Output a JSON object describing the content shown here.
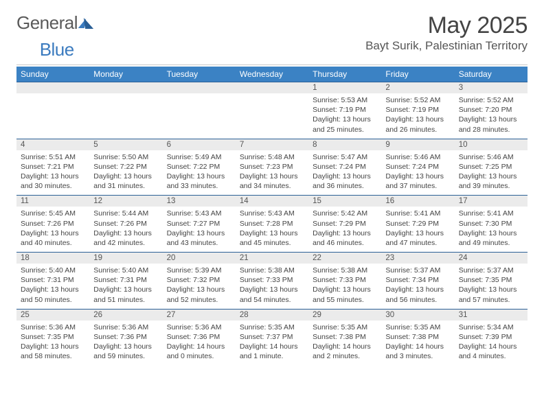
{
  "brand": {
    "part1": "General",
    "part2": "Blue"
  },
  "title": {
    "month": "May 2025",
    "location": "Bayt Surik, Palestinian Territory"
  },
  "weekdays": [
    "Sunday",
    "Monday",
    "Tuesday",
    "Wednesday",
    "Thursday",
    "Friday",
    "Saturday"
  ],
  "colors": {
    "header_bg": "#3b82c4",
    "header_text": "#ffffff",
    "daynum_bg": "#ebebeb",
    "row_border": "#2a5f96",
    "body_text": "#444444",
    "logo_gray": "#5a5a5a",
    "logo_blue": "#3b7bbf"
  },
  "fonts": {
    "body_pt": 10.5,
    "weekday_pt": 12,
    "month_pt": 34,
    "location_pt": 17
  },
  "weeks": [
    [
      null,
      null,
      null,
      null,
      {
        "n": "1",
        "sr": "5:53 AM",
        "ss": "7:19 PM",
        "dl": "13 hours and 25 minutes."
      },
      {
        "n": "2",
        "sr": "5:52 AM",
        "ss": "7:19 PM",
        "dl": "13 hours and 26 minutes."
      },
      {
        "n": "3",
        "sr": "5:52 AM",
        "ss": "7:20 PM",
        "dl": "13 hours and 28 minutes."
      }
    ],
    [
      {
        "n": "4",
        "sr": "5:51 AM",
        "ss": "7:21 PM",
        "dl": "13 hours and 30 minutes."
      },
      {
        "n": "5",
        "sr": "5:50 AM",
        "ss": "7:22 PM",
        "dl": "13 hours and 31 minutes."
      },
      {
        "n": "6",
        "sr": "5:49 AM",
        "ss": "7:22 PM",
        "dl": "13 hours and 33 minutes."
      },
      {
        "n": "7",
        "sr": "5:48 AM",
        "ss": "7:23 PM",
        "dl": "13 hours and 34 minutes."
      },
      {
        "n": "8",
        "sr": "5:47 AM",
        "ss": "7:24 PM",
        "dl": "13 hours and 36 minutes."
      },
      {
        "n": "9",
        "sr": "5:46 AM",
        "ss": "7:24 PM",
        "dl": "13 hours and 37 minutes."
      },
      {
        "n": "10",
        "sr": "5:46 AM",
        "ss": "7:25 PM",
        "dl": "13 hours and 39 minutes."
      }
    ],
    [
      {
        "n": "11",
        "sr": "5:45 AM",
        "ss": "7:26 PM",
        "dl": "13 hours and 40 minutes."
      },
      {
        "n": "12",
        "sr": "5:44 AM",
        "ss": "7:26 PM",
        "dl": "13 hours and 42 minutes."
      },
      {
        "n": "13",
        "sr": "5:43 AM",
        "ss": "7:27 PM",
        "dl": "13 hours and 43 minutes."
      },
      {
        "n": "14",
        "sr": "5:43 AM",
        "ss": "7:28 PM",
        "dl": "13 hours and 45 minutes."
      },
      {
        "n": "15",
        "sr": "5:42 AM",
        "ss": "7:29 PM",
        "dl": "13 hours and 46 minutes."
      },
      {
        "n": "16",
        "sr": "5:41 AM",
        "ss": "7:29 PM",
        "dl": "13 hours and 47 minutes."
      },
      {
        "n": "17",
        "sr": "5:41 AM",
        "ss": "7:30 PM",
        "dl": "13 hours and 49 minutes."
      }
    ],
    [
      {
        "n": "18",
        "sr": "5:40 AM",
        "ss": "7:31 PM",
        "dl": "13 hours and 50 minutes."
      },
      {
        "n": "19",
        "sr": "5:40 AM",
        "ss": "7:31 PM",
        "dl": "13 hours and 51 minutes."
      },
      {
        "n": "20",
        "sr": "5:39 AM",
        "ss": "7:32 PM",
        "dl": "13 hours and 52 minutes."
      },
      {
        "n": "21",
        "sr": "5:38 AM",
        "ss": "7:33 PM",
        "dl": "13 hours and 54 minutes."
      },
      {
        "n": "22",
        "sr": "5:38 AM",
        "ss": "7:33 PM",
        "dl": "13 hours and 55 minutes."
      },
      {
        "n": "23",
        "sr": "5:37 AM",
        "ss": "7:34 PM",
        "dl": "13 hours and 56 minutes."
      },
      {
        "n": "24",
        "sr": "5:37 AM",
        "ss": "7:35 PM",
        "dl": "13 hours and 57 minutes."
      }
    ],
    [
      {
        "n": "25",
        "sr": "5:36 AM",
        "ss": "7:35 PM",
        "dl": "13 hours and 58 minutes."
      },
      {
        "n": "26",
        "sr": "5:36 AM",
        "ss": "7:36 PM",
        "dl": "13 hours and 59 minutes."
      },
      {
        "n": "27",
        "sr": "5:36 AM",
        "ss": "7:36 PM",
        "dl": "14 hours and 0 minutes."
      },
      {
        "n": "28",
        "sr": "5:35 AM",
        "ss": "7:37 PM",
        "dl": "14 hours and 1 minute."
      },
      {
        "n": "29",
        "sr": "5:35 AM",
        "ss": "7:38 PM",
        "dl": "14 hours and 2 minutes."
      },
      {
        "n": "30",
        "sr": "5:35 AM",
        "ss": "7:38 PM",
        "dl": "14 hours and 3 minutes."
      },
      {
        "n": "31",
        "sr": "5:34 AM",
        "ss": "7:39 PM",
        "dl": "14 hours and 4 minutes."
      }
    ]
  ],
  "labels": {
    "sunrise": "Sunrise: ",
    "sunset": "Sunset: ",
    "daylight": "Daylight: "
  }
}
